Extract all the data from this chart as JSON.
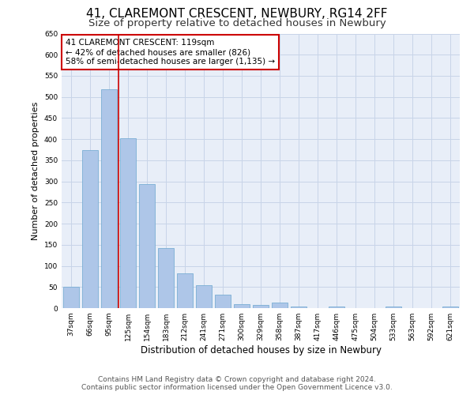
{
  "title1": "41, CLAREMONT CRESCENT, NEWBURY, RG14 2FF",
  "title2": "Size of property relative to detached houses in Newbury",
  "xlabel": "Distribution of detached houses by size in Newbury",
  "ylabel": "Number of detached properties",
  "categories": [
    "37sqm",
    "66sqm",
    "95sqm",
    "125sqm",
    "154sqm",
    "183sqm",
    "212sqm",
    "241sqm",
    "271sqm",
    "300sqm",
    "329sqm",
    "358sqm",
    "387sqm",
    "417sqm",
    "446sqm",
    "475sqm",
    "504sqm",
    "533sqm",
    "563sqm",
    "592sqm",
    "621sqm"
  ],
  "values": [
    50,
    375,
    518,
    403,
    293,
    142,
    82,
    55,
    31,
    10,
    8,
    13,
    4,
    0,
    4,
    0,
    0,
    4,
    0,
    0,
    4
  ],
  "bar_color": "#aec6e8",
  "bar_edge_color": "#7aaed4",
  "vline_color": "#cc0000",
  "annotation_box_text": "41 CLAREMONT CRESCENT: 119sqm\n← 42% of detached houses are smaller (826)\n58% of semi-detached houses are larger (1,135) →",
  "annotation_box_color": "#cc0000",
  "annotation_bg_color": "#ffffff",
  "ylim": [
    0,
    650
  ],
  "yticks": [
    0,
    50,
    100,
    150,
    200,
    250,
    300,
    350,
    400,
    450,
    500,
    550,
    600,
    650
  ],
  "grid_color": "#c8d4e8",
  "bg_color": "#e8eef8",
  "footer_line1": "Contains HM Land Registry data © Crown copyright and database right 2024.",
  "footer_line2": "Contains public sector information licensed under the Open Government Licence v3.0.",
  "title1_fontsize": 11,
  "title2_fontsize": 9.5,
  "annotation_fontsize": 7.5,
  "tick_fontsize": 6.5,
  "ylabel_fontsize": 8,
  "xlabel_fontsize": 8.5,
  "footer_fontsize": 6.5
}
